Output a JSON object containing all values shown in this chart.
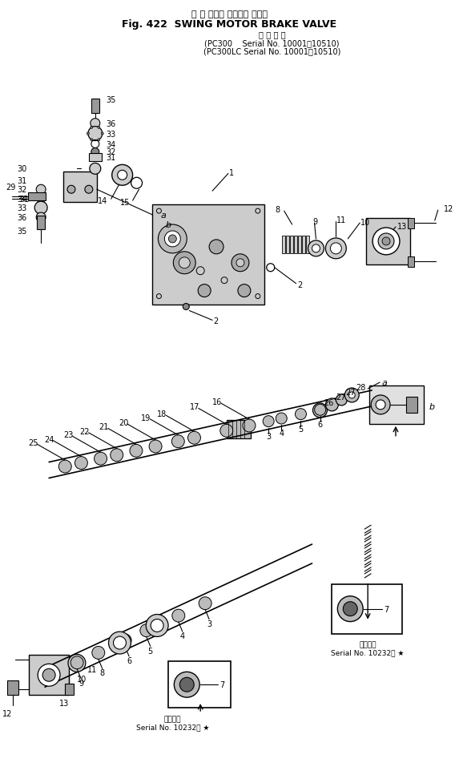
{
  "title_jp": "旋 回 モータ ブレーキ バルブ",
  "title_en": "Fig. 422  SWING MOTOR BRAKE VALVE",
  "subtitle_line1": "適 用 号 機",
  "subtitle_line2": "(PC300    Serial No. 10001～10510)",
  "subtitle_line3": "(PC300LC Serial No. 10001～10510)",
  "footer_label": "適用号機",
  "footer_serial": "Serial No. 10232～ ★",
  "bg_color": "#ffffff",
  "line_color": "#000000",
  "fig_width": 5.73,
  "fig_height": 9.78
}
